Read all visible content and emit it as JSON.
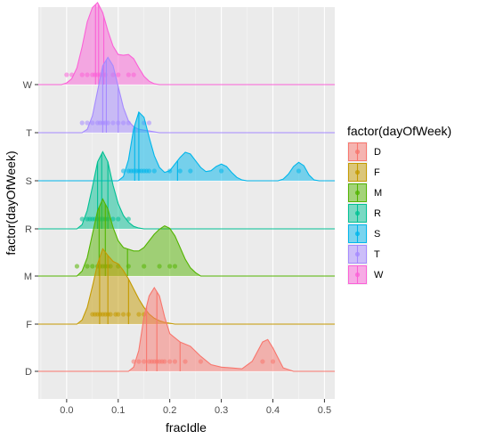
{
  "chart_data": {
    "type": "ridgeline",
    "title": "",
    "xlabel": "fracIdle",
    "ylabel": "factor(dayOfWeek)",
    "xlim": [
      -0.055,
      0.52
    ],
    "x_ticks": [
      0.0,
      0.1,
      0.2,
      0.3,
      0.4,
      0.5
    ],
    "x_tick_labels": [
      "0.0",
      "0.1",
      "0.2",
      "0.3",
      "0.4",
      "0.5"
    ],
    "categories": [
      "D",
      "F",
      "M",
      "R",
      "S",
      "T",
      "W"
    ],
    "grid": true,
    "legend": {
      "title": "factor(dayOfWeek)",
      "placement": "right",
      "entries": [
        "D",
        "F",
        "M",
        "R",
        "S",
        "T",
        "W"
      ]
    },
    "colors": {
      "D": "#F8766D",
      "F": "#C49A00",
      "M": "#53B400",
      "R": "#00C094",
      "S": "#00B6EB",
      "T": "#A58AFF",
      "W": "#FB61D7",
      "panel_background": "#EBEBEB",
      "grid_major": "#FFFFFF",
      "tick_color": "#333333"
    },
    "series": [
      {
        "name": "D",
        "density": [
          [
            -0.055,
            0
          ],
          [
            0.12,
            0
          ],
          [
            0.13,
            0.05
          ],
          [
            0.14,
            0.25
          ],
          [
            0.15,
            0.65
          ],
          [
            0.16,
            0.9
          ],
          [
            0.17,
            1.0
          ],
          [
            0.18,
            0.9
          ],
          [
            0.19,
            0.65
          ],
          [
            0.2,
            0.45
          ],
          [
            0.22,
            0.35
          ],
          [
            0.24,
            0.3
          ],
          [
            0.26,
            0.18
          ],
          [
            0.28,
            0.08
          ],
          [
            0.3,
            0.05
          ],
          [
            0.32,
            0.04
          ],
          [
            0.34,
            0.03
          ],
          [
            0.36,
            0.12
          ],
          [
            0.38,
            0.35
          ],
          [
            0.39,
            0.38
          ],
          [
            0.4,
            0.28
          ],
          [
            0.42,
            0.04
          ],
          [
            0.44,
            0
          ],
          [
            0.52,
            0
          ]
        ],
        "points": [
          0.13,
          0.14,
          0.15,
          0.16,
          0.165,
          0.17,
          0.175,
          0.18,
          0.185,
          0.19,
          0.2,
          0.21,
          0.23,
          0.26,
          0.38,
          0.4
        ],
        "quantiles": [
          0.155,
          0.175,
          0.22
        ]
      },
      {
        "name": "F",
        "density": [
          [
            -0.055,
            0
          ],
          [
            0.02,
            0
          ],
          [
            0.03,
            0.05
          ],
          [
            0.04,
            0.2
          ],
          [
            0.05,
            0.45
          ],
          [
            0.06,
            0.72
          ],
          [
            0.07,
            0.9
          ],
          [
            0.08,
            0.82
          ],
          [
            0.09,
            0.75
          ],
          [
            0.1,
            0.72
          ],
          [
            0.11,
            0.64
          ],
          [
            0.12,
            0.54
          ],
          [
            0.13,
            0.42
          ],
          [
            0.14,
            0.3
          ],
          [
            0.15,
            0.2
          ],
          [
            0.16,
            0.12
          ],
          [
            0.17,
            0.07
          ],
          [
            0.18,
            0.04
          ],
          [
            0.19,
            0.02
          ],
          [
            0.21,
            0
          ],
          [
            0.52,
            0
          ]
        ],
        "points": [
          0.05,
          0.055,
          0.06,
          0.065,
          0.07,
          0.075,
          0.08,
          0.085,
          0.095,
          0.1,
          0.11,
          0.12,
          0.14,
          0.15
        ],
        "quantiles": [
          0.064,
          0.08,
          0.12
        ]
      },
      {
        "name": "M",
        "density": [
          [
            -0.055,
            0
          ],
          [
            0.02,
            0
          ],
          [
            0.03,
            0.06
          ],
          [
            0.04,
            0.22
          ],
          [
            0.05,
            0.5
          ],
          [
            0.06,
            0.78
          ],
          [
            0.07,
            0.92
          ],
          [
            0.08,
            0.8
          ],
          [
            0.09,
            0.58
          ],
          [
            0.1,
            0.42
          ],
          [
            0.11,
            0.34
          ],
          [
            0.12,
            0.32
          ],
          [
            0.13,
            0.3
          ],
          [
            0.14,
            0.3
          ],
          [
            0.15,
            0.34
          ],
          [
            0.16,
            0.42
          ],
          [
            0.17,
            0.5
          ],
          [
            0.18,
            0.56
          ],
          [
            0.19,
            0.6
          ],
          [
            0.2,
            0.57
          ],
          [
            0.21,
            0.48
          ],
          [
            0.22,
            0.34
          ],
          [
            0.23,
            0.2
          ],
          [
            0.24,
            0.1
          ],
          [
            0.25,
            0.04
          ],
          [
            0.26,
            0
          ],
          [
            0.52,
            0
          ]
        ],
        "points": [
          0.02,
          0.04,
          0.05,
          0.06,
          0.065,
          0.07,
          0.075,
          0.08,
          0.085,
          0.1,
          0.12,
          0.15,
          0.18,
          0.2,
          0.21
        ],
        "quantiles": [
          0.063,
          0.075,
          0.118
        ]
      },
      {
        "name": "R",
        "density": [
          [
            -0.055,
            0
          ],
          [
            0.02,
            0
          ],
          [
            0.03,
            0.05
          ],
          [
            0.04,
            0.22
          ],
          [
            0.05,
            0.5
          ],
          [
            0.06,
            0.8
          ],
          [
            0.07,
            0.92
          ],
          [
            0.08,
            0.8
          ],
          [
            0.09,
            0.52
          ],
          [
            0.1,
            0.3
          ],
          [
            0.11,
            0.16
          ],
          [
            0.12,
            0.08
          ],
          [
            0.13,
            0.03
          ],
          [
            0.14,
            0.01
          ],
          [
            0.15,
            0
          ],
          [
            0.52,
            0
          ]
        ],
        "points": [
          0.03,
          0.04,
          0.045,
          0.05,
          0.055,
          0.06,
          0.065,
          0.07,
          0.075,
          0.08,
          0.09,
          0.1,
          0.12
        ],
        "quantiles": [
          0.06,
          0.068,
          0.08
        ]
      },
      {
        "name": "S",
        "density": [
          [
            -0.055,
            0
          ],
          [
            0.1,
            0
          ],
          [
            0.11,
            0.05
          ],
          [
            0.12,
            0.25
          ],
          [
            0.13,
            0.62
          ],
          [
            0.14,
            0.82
          ],
          [
            0.15,
            0.76
          ],
          [
            0.16,
            0.52
          ],
          [
            0.17,
            0.3
          ],
          [
            0.18,
            0.16
          ],
          [
            0.19,
            0.1
          ],
          [
            0.2,
            0.12
          ],
          [
            0.21,
            0.2
          ],
          [
            0.22,
            0.28
          ],
          [
            0.23,
            0.34
          ],
          [
            0.24,
            0.32
          ],
          [
            0.25,
            0.24
          ],
          [
            0.26,
            0.16
          ],
          [
            0.27,
            0.11
          ],
          [
            0.28,
            0.12
          ],
          [
            0.29,
            0.17
          ],
          [
            0.3,
            0.2
          ],
          [
            0.31,
            0.17
          ],
          [
            0.32,
            0.1
          ],
          [
            0.33,
            0.04
          ],
          [
            0.34,
            0.01
          ],
          [
            0.35,
            0
          ],
          [
            0.41,
            0
          ],
          [
            0.42,
            0.02
          ],
          [
            0.43,
            0.08
          ],
          [
            0.44,
            0.17
          ],
          [
            0.45,
            0.22
          ],
          [
            0.46,
            0.18
          ],
          [
            0.47,
            0.07
          ],
          [
            0.48,
            0.01
          ],
          [
            0.49,
            0
          ],
          [
            0.52,
            0
          ]
        ],
        "points": [
          0.11,
          0.12,
          0.125,
          0.13,
          0.135,
          0.14,
          0.145,
          0.15,
          0.155,
          0.16,
          0.17,
          0.2,
          0.22,
          0.24,
          0.3,
          0.45
        ],
        "quantiles": [
          0.132,
          0.14,
          0.215
        ]
      },
      {
        "name": "T",
        "density": [
          [
            -0.055,
            0
          ],
          [
            0.03,
            0
          ],
          [
            0.04,
            0.04
          ],
          [
            0.05,
            0.2
          ],
          [
            0.06,
            0.5
          ],
          [
            0.07,
            0.8
          ],
          [
            0.08,
            0.9
          ],
          [
            0.09,
            0.8
          ],
          [
            0.1,
            0.55
          ],
          [
            0.11,
            0.3
          ],
          [
            0.12,
            0.14
          ],
          [
            0.13,
            0.07
          ],
          [
            0.14,
            0.04
          ],
          [
            0.15,
            0.03
          ],
          [
            0.16,
            0.02
          ],
          [
            0.17,
            0.01
          ],
          [
            0.18,
            0
          ],
          [
            0.52,
            0
          ]
        ],
        "points": [
          0.03,
          0.04,
          0.05,
          0.06,
          0.065,
          0.07,
          0.075,
          0.08,
          0.09,
          0.1,
          0.11,
          0.12,
          0.15,
          0.16
        ],
        "quantiles": [
          0.07,
          0.077,
          0.1
        ]
      },
      {
        "name": "W",
        "density": [
          [
            -0.055,
            0
          ],
          [
            -0.01,
            0
          ],
          [
            0.0,
            0.02
          ],
          [
            0.01,
            0.07
          ],
          [
            0.02,
            0.2
          ],
          [
            0.03,
            0.45
          ],
          [
            0.04,
            0.75
          ],
          [
            0.05,
            0.92
          ],
          [
            0.06,
            0.98
          ],
          [
            0.07,
            0.86
          ],
          [
            0.08,
            0.64
          ],
          [
            0.09,
            0.46
          ],
          [
            0.1,
            0.36
          ],
          [
            0.11,
            0.35
          ],
          [
            0.12,
            0.36
          ],
          [
            0.13,
            0.31
          ],
          [
            0.14,
            0.2
          ],
          [
            0.15,
            0.1
          ],
          [
            0.16,
            0.04
          ],
          [
            0.17,
            0.01
          ],
          [
            0.18,
            0
          ],
          [
            0.52,
            0
          ]
        ],
        "points": [
          0.0,
          0.01,
          0.03,
          0.04,
          0.05,
          0.055,
          0.06,
          0.065,
          0.07,
          0.075,
          0.09,
          0.1,
          0.12,
          0.13
        ],
        "quantiles": [
          0.056,
          0.062,
          0.072
        ]
      }
    ]
  }
}
